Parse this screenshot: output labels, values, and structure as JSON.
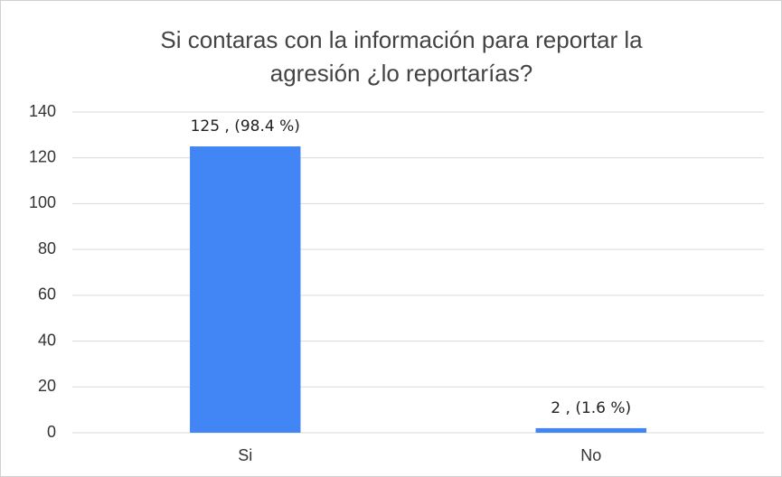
{
  "chart_data": {
    "type": "bar",
    "title": [
      "Si contaras con la información para reportar la",
      "agresión ¿lo reportarías?"
    ],
    "categories": [
      "Si",
      "No"
    ],
    "values": [
      125,
      2
    ],
    "value_labels": [
      "125 , (98.4 %)",
      "2 , (1.6 %)"
    ],
    "color": "#4285f4",
    "ylim": [
      0,
      140
    ],
    "yticks": [
      0,
      20,
      40,
      60,
      80,
      100,
      120,
      140
    ],
    "grid": true
  }
}
